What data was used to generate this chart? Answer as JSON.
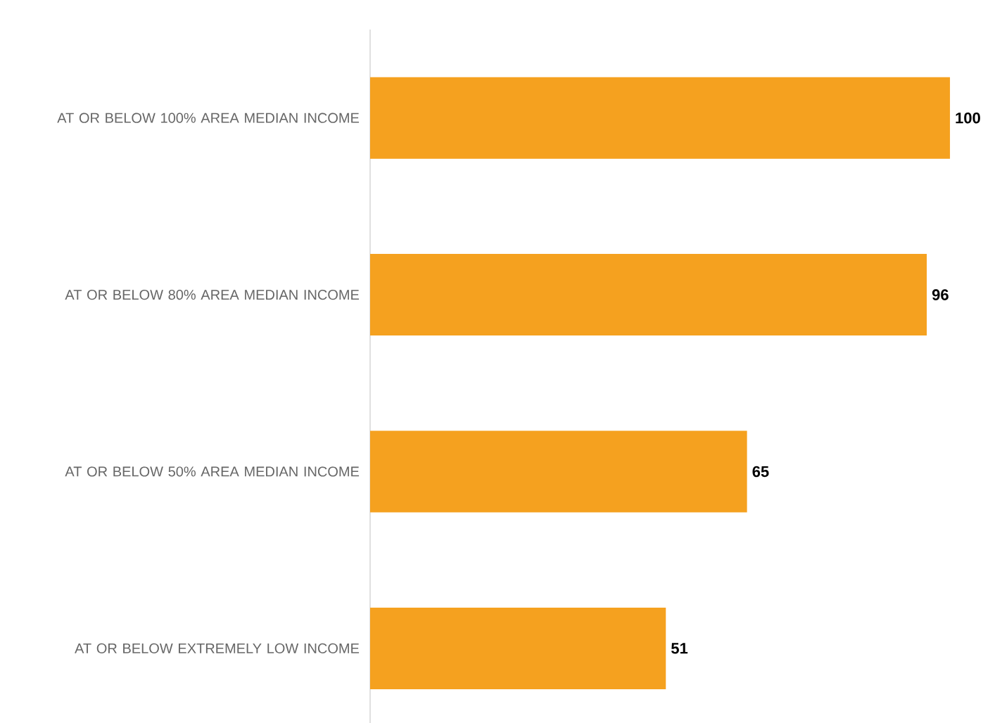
{
  "chart_data": {
    "type": "bar",
    "orientation": "horizontal",
    "categories": [
      "AT OR BELOW 100% AREA MEDIAN INCOME",
      "AT OR BELOW 80% AREA MEDIAN INCOME",
      "AT OR BELOW 50% AREA MEDIAN INCOME",
      "AT OR BELOW EXTREMELY LOW INCOME"
    ],
    "values": [
      100,
      96,
      65,
      51
    ],
    "color": "#f5a11f",
    "data_labels": true
  }
}
